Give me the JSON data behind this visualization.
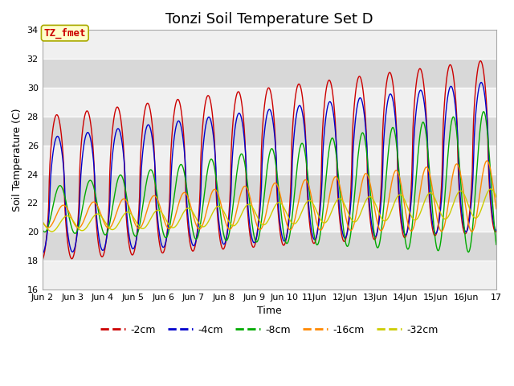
{
  "title": "Tonzi Soil Temperature Set D",
  "xlabel": "Time",
  "ylabel": "Soil Temperature (C)",
  "ylim": [
    16,
    34
  ],
  "xlim_days": [
    2,
    17
  ],
  "xtick_labels": [
    "Jun 2",
    "Jun 3",
    "Jun 4",
    "Jun 5",
    "Jun 6",
    "Jun 7",
    "Jun 8",
    "Jun 9",
    "Jun 10",
    "11Jun",
    "12Jun",
    "13Jun",
    "14Jun",
    "15Jun",
    "16Jun",
    "17"
  ],
  "xtick_positions": [
    2,
    3,
    4,
    5,
    6,
    7,
    8,
    9,
    10,
    11,
    12,
    13,
    14,
    15,
    16,
    17
  ],
  "series_colors": [
    "#cc0000",
    "#0000cc",
    "#00aa00",
    "#ff8800",
    "#cccc00"
  ],
  "series_labels": [
    "-2cm",
    "-4cm",
    "-8cm",
    "-16cm",
    "-32cm"
  ],
  "annotation_text": "TZ_fmet",
  "annotation_bg": "#ffffcc",
  "annotation_border": "#aaaa00",
  "annotation_text_color": "#cc0000",
  "plot_bg_light": "#f0f0f0",
  "plot_bg_dark": "#d8d8d8",
  "grid_color": "#ffffff",
  "fig_bg": "#ffffff",
  "title_fontsize": 13,
  "label_fontsize": 9,
  "tick_fontsize": 8,
  "legend_fontsize": 9,
  "linewidth": 1.0
}
